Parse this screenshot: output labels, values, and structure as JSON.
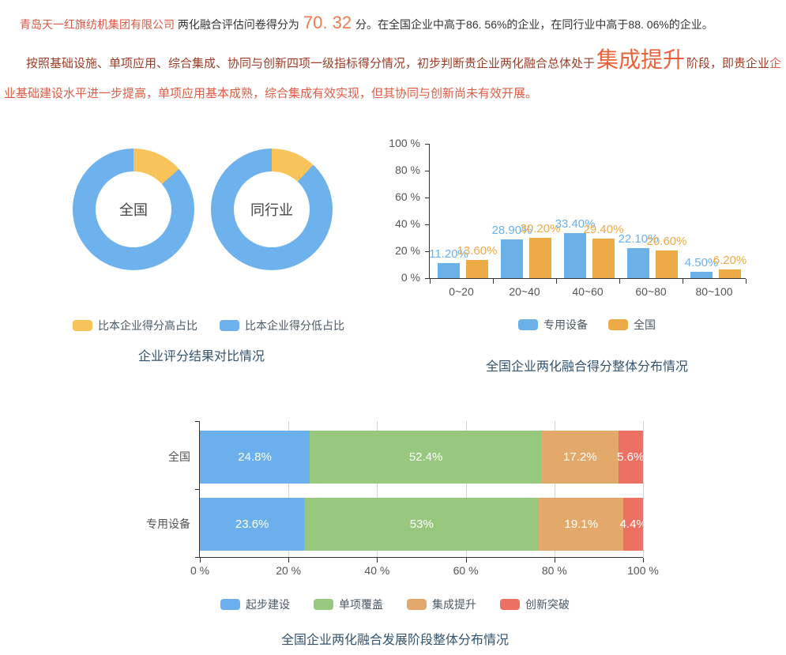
{
  "page": {
    "summary": {
      "company_name": "青岛天一红旗纺机集团有限公司",
      "score_prefix": "两化融合评估问卷得分为",
      "score_value": "70. 32",
      "score_detail": "分。在全国企业中高于86. 56%的企业，在同行业中高于88. 06%的企业。"
    },
    "assessment": {
      "lead": "按照基础设施、单项应用、综合集成、协同与创新四项一级指标得分情况，初步判断贵企业两化融合总体处于",
      "stage": "集成提升",
      "mid": "阶段，即贵企业",
      "detail": "企业基础建设水平进一步提高，单项应用基本成熟，综合集成有效实现，但其协同与创新尚未有效开展。"
    }
  },
  "chart_data": [
    {
      "type": "pie",
      "subtype": "donut-pair",
      "title": "企业评分结果对比情况",
      "legend_position": "bottom",
      "donuts": [
        {
          "label": "全国",
          "slices": [
            {
              "name": "比本企业得分高占比",
              "value": 13.44,
              "color": "#f8c45a"
            },
            {
              "name": "比本企业得分低占比",
              "value": 86.56,
              "color": "#6db1ed"
            }
          ]
        },
        {
          "label": "同行业",
          "slices": [
            {
              "name": "比本企业得分高占比",
              "value": 11.94,
              "color": "#f8c45a"
            },
            {
              "name": "比本企业得分低占比",
              "value": 88.06,
              "color": "#6db1ed"
            }
          ]
        }
      ]
    },
    {
      "type": "bar",
      "title": "全国企业两化融合得分整体分布情况",
      "categories": [
        "0~20",
        "20~40",
        "40~60",
        "60~80",
        "80~100"
      ],
      "series": [
        {
          "name": "专用设备",
          "color": "#6cb0e8",
          "values": [
            11.2,
            28.9,
            33.4,
            22.1,
            4.5
          ],
          "labels": [
            "11.20%",
            "28.90%",
            "33.40%",
            "22.10%",
            "4.50%"
          ]
        },
        {
          "name": "全国",
          "color": "#edaa46",
          "values": [
            13.6,
            30.2,
            29.4,
            20.6,
            6.2
          ],
          "labels": [
            "13.60%",
            "30.20%",
            "29.40%",
            "20.60%",
            "6.20%"
          ]
        }
      ],
      "ylim": [
        0,
        100
      ],
      "ytick_step": 20,
      "ytick_suffix": " %",
      "grid": false,
      "legend_position": "bottom"
    },
    {
      "type": "bar",
      "subtype": "horizontal-stacked",
      "title": "全国企业两化融合发展阶段整体分布情况",
      "categories": [
        "全国",
        "专用设备"
      ],
      "series": [
        {
          "name": "起步建设",
          "color": "#6bb0ec",
          "values": [
            24.8,
            23.6
          ],
          "labels": [
            "24.8%",
            "23.6%"
          ]
        },
        {
          "name": "单项覆盖",
          "color": "#97c87e",
          "values": [
            52.4,
            53
          ],
          "labels": [
            "52.4%",
            "53%"
          ]
        },
        {
          "name": "集成提升",
          "color": "#e3a96b",
          "values": [
            17.2,
            19.1
          ],
          "labels": [
            "17.2%",
            "19.1%"
          ]
        },
        {
          "name": "创新突破",
          "color": "#ed7163",
          "values": [
            5.6,
            4.4
          ],
          "labels": [
            "5.6%",
            "4.4%"
          ]
        }
      ],
      "xlim": [
        0,
        100
      ],
      "xtick_step": 20,
      "xtick_suffix": " %",
      "grid": true,
      "legend_position": "bottom"
    }
  ],
  "colors": {
    "company_red": "#dc5745",
    "score_orange": "#ef7a50",
    "assessment_dark_red": "#9d3c26",
    "stage_orange": "#e8633c",
    "assessment_light_red": "#df5b45",
    "title_blue": "#33536f",
    "axis_text": "#555555",
    "axis_line": "#333333",
    "gridline": "#d4d4d4"
  }
}
